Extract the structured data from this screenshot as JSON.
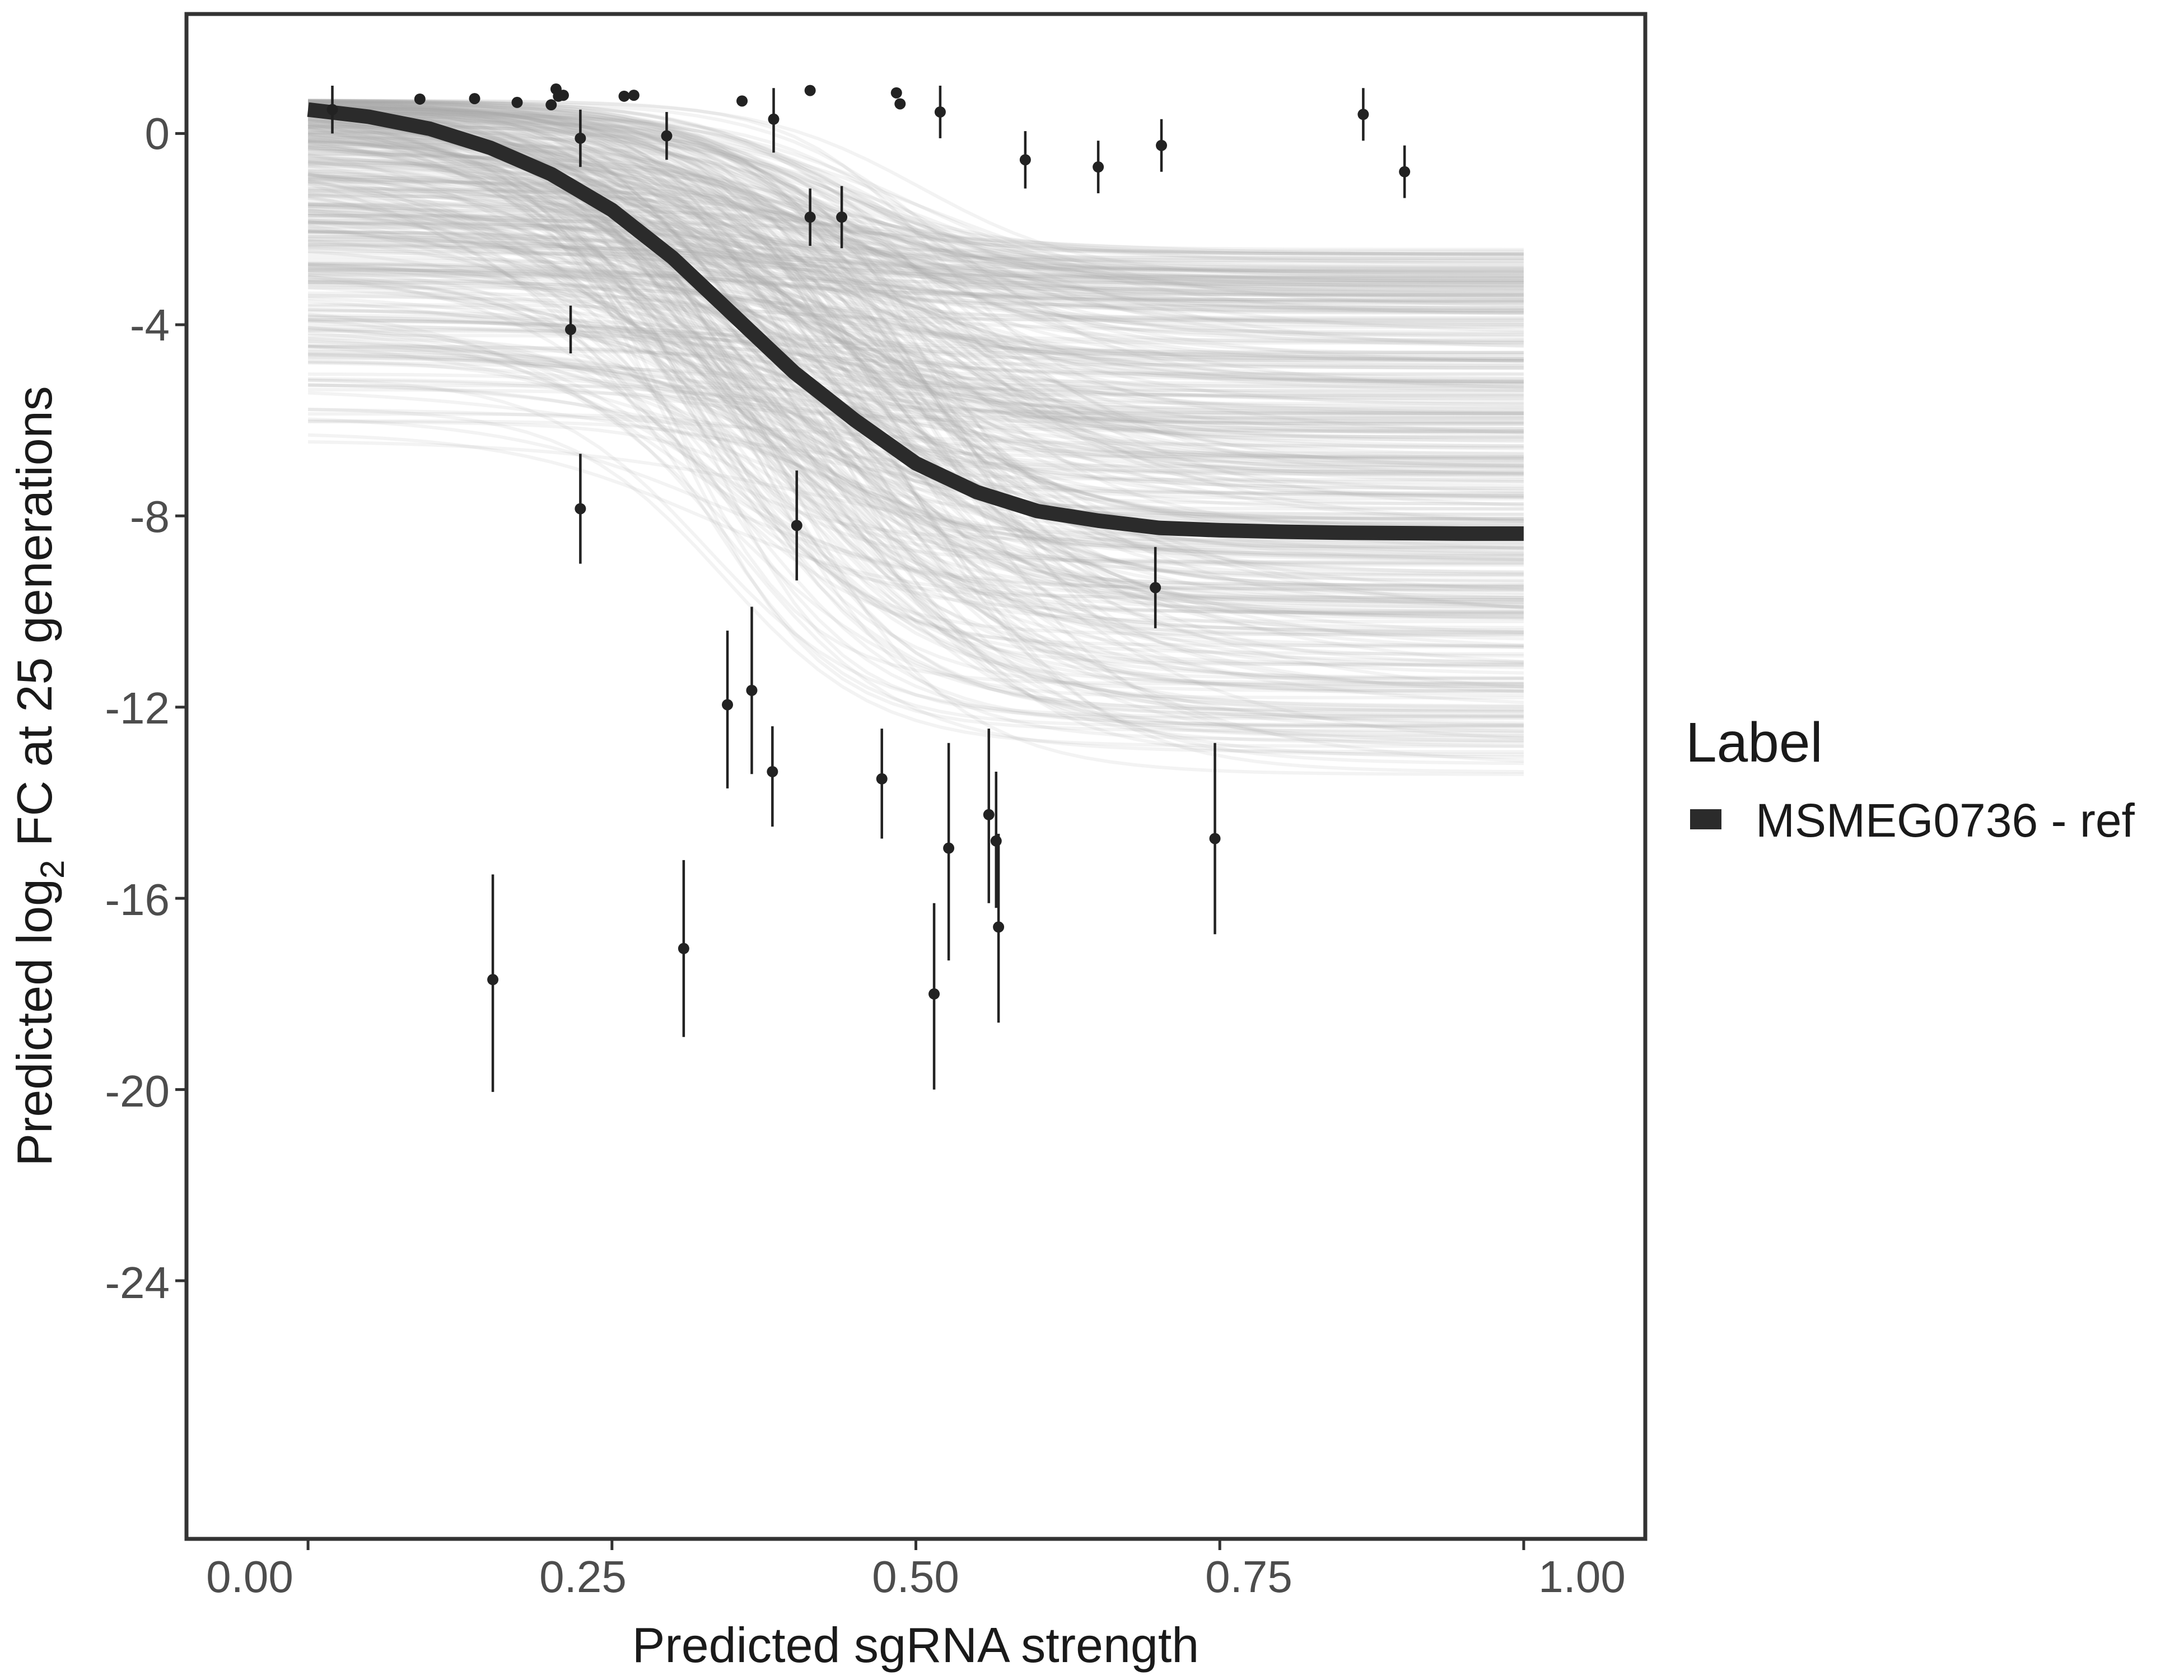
{
  "chart_data": {
    "type": "line",
    "xlabel": "Predicted sgRNA strength",
    "ylabel_prefix": "Predicted  log",
    "ylabel_sub": "2",
    "ylabel_suffix": " FC at 25 generations",
    "xlim": [
      -0.1,
      1.1
    ],
    "ylim": [
      -29.4,
      2.5
    ],
    "x_ticks": [
      0.0,
      0.25,
      0.5,
      0.75,
      1.0
    ],
    "x_tick_labels": [
      "0.00",
      "0.25",
      "0.50",
      "0.75",
      "1.00"
    ],
    "y_ticks": [
      0,
      -4,
      -8,
      -12,
      -16,
      -20,
      -24
    ],
    "y_tick_labels": [
      "0",
      "-4",
      "-8",
      "-12",
      "-16",
      "-20",
      "-24"
    ],
    "grid": false,
    "legend": {
      "title": "Label",
      "position": "right",
      "entries": [
        {
          "label": "MSMEG0736 - ref",
          "color": "#2b2b2b"
        }
      ]
    },
    "series": [
      {
        "name": "MSMEG0736 - ref",
        "color": "#2b2b2b",
        "x": [
          0.0,
          0.05,
          0.1,
          0.15,
          0.2,
          0.25,
          0.3,
          0.35,
          0.4,
          0.45,
          0.5,
          0.55,
          0.6,
          0.65,
          0.7,
          0.75,
          0.8,
          0.85,
          0.9,
          0.95,
          1.0
        ],
        "y": [
          0.5,
          0.35,
          0.1,
          -0.3,
          -0.85,
          -1.6,
          -2.6,
          -3.8,
          -5.0,
          -6.0,
          -6.9,
          -7.5,
          -7.9,
          -8.1,
          -8.25,
          -8.3,
          -8.33,
          -8.35,
          -8.36,
          -8.37,
          -8.37
        ]
      }
    ],
    "posterior_draws": {
      "count": 400,
      "color": "#a9a9a9",
      "x_range": [
        0.0,
        1.0
      ],
      "lower_asymptote_range": [
        -13.5,
        -2.4
      ],
      "upper_asymptote_range": [
        -6.5,
        0.7
      ]
    },
    "points": [
      {
        "x": 0.02,
        "y": 0.5,
        "lo": -0.0,
        "hi": 1.0
      },
      {
        "x": 0.092,
        "y": 0.72
      },
      {
        "x": 0.137,
        "y": 0.73
      },
      {
        "x": 0.172,
        "y": 0.65
      },
      {
        "x": 0.2,
        "y": 0.6
      },
      {
        "x": 0.204,
        "y": 0.93
      },
      {
        "x": 0.206,
        "y": 0.78
      },
      {
        "x": 0.21,
        "y": 0.8
      },
      {
        "x": 0.26,
        "y": 0.78
      },
      {
        "x": 0.268,
        "y": 0.8
      },
      {
        "x": 0.357,
        "y": 0.68
      },
      {
        "x": 0.413,
        "y": 0.9
      },
      {
        "x": 0.484,
        "y": 0.85
      },
      {
        "x": 0.487,
        "y": 0.62
      },
      {
        "x": 0.224,
        "y": -0.1,
        "lo": -0.7,
        "hi": 0.5
      },
      {
        "x": 0.295,
        "y": -0.05,
        "lo": -0.55,
        "hi": 0.45
      },
      {
        "x": 0.383,
        "y": 0.3,
        "lo": -0.4,
        "hi": 0.95
      },
      {
        "x": 0.52,
        "y": 0.45,
        "lo": -0.1,
        "hi": 1.0
      },
      {
        "x": 0.59,
        "y": -0.55,
        "lo": -1.15,
        "hi": 0.05
      },
      {
        "x": 0.65,
        "y": -0.7,
        "lo": -1.25,
        "hi": -0.15
      },
      {
        "x": 0.702,
        "y": -0.25,
        "lo": -0.8,
        "hi": 0.3
      },
      {
        "x": 0.868,
        "y": 0.4,
        "lo": -0.15,
        "hi": 0.95
      },
      {
        "x": 0.902,
        "y": -0.8,
        "lo": -1.35,
        "hi": -0.25
      },
      {
        "x": 0.413,
        "y": -1.75,
        "lo": -2.35,
        "hi": -1.15
      },
      {
        "x": 0.439,
        "y": -1.75,
        "lo": -2.4,
        "hi": -1.1
      },
      {
        "x": 0.216,
        "y": -4.1,
        "lo": -4.6,
        "hi": -3.6
      },
      {
        "x": 0.224,
        "y": -7.85,
        "lo": -9.0,
        "hi": -6.7
      },
      {
        "x": 0.402,
        "y": -8.2,
        "lo": -9.35,
        "hi": -7.05
      },
      {
        "x": 0.697,
        "y": -9.5,
        "lo": -10.35,
        "hi": -8.65
      },
      {
        "x": 0.345,
        "y": -11.95,
        "lo": -13.7,
        "hi": -10.4
      },
      {
        "x": 0.365,
        "y": -11.65,
        "lo": -13.4,
        "hi": -9.9
      },
      {
        "x": 0.382,
        "y": -13.35,
        "lo": -14.5,
        "hi": -12.4
      },
      {
        "x": 0.472,
        "y": -13.5,
        "lo": -14.75,
        "hi": -12.45
      },
      {
        "x": 0.527,
        "y": -14.95,
        "lo": -17.3,
        "hi": -12.75
      },
      {
        "x": 0.56,
        "y": -14.25,
        "lo": -16.1,
        "hi": -12.45
      },
      {
        "x": 0.566,
        "y": -14.8,
        "lo": -16.2,
        "hi": -13.35
      },
      {
        "x": 0.568,
        "y": -16.6,
        "lo": -18.6,
        "hi": -14.65
      },
      {
        "x": 0.746,
        "y": -14.75,
        "lo": -16.75,
        "hi": -12.75
      },
      {
        "x": 0.152,
        "y": -17.7,
        "lo": -20.05,
        "hi": -15.5
      },
      {
        "x": 0.309,
        "y": -17.05,
        "lo": -18.9,
        "hi": -15.2
      },
      {
        "x": 0.515,
        "y": -18.0,
        "lo": -20.0,
        "hi": -16.1
      }
    ]
  }
}
